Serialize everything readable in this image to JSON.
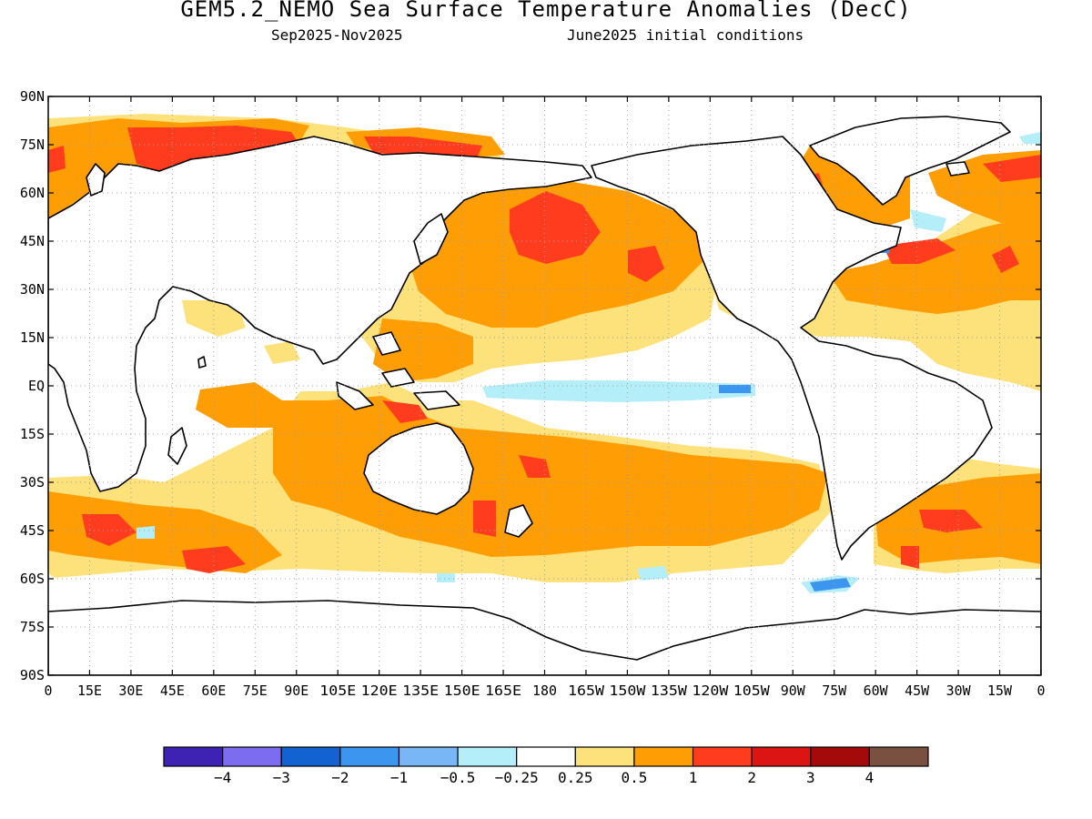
{
  "title": "GEM5.2_NEMO Sea Surface Temperature Anomalies (DecC)",
  "subtitle_left": "Sep2025-Nov2025",
  "subtitle_right": "June2025 initial conditions",
  "lat_labels": [
    "90N",
    "75N",
    "60N",
    "45N",
    "30N",
    "15N",
    "EQ",
    "15S",
    "30S",
    "45S",
    "60S",
    "75S",
    "90S"
  ],
  "lon_labels": [
    "0",
    "15E",
    "30E",
    "45E",
    "60E",
    "75E",
    "90E",
    "105E",
    "120E",
    "135E",
    "150E",
    "165E",
    "180",
    "165W",
    "150W",
    "135W",
    "120W",
    "105W",
    "90W",
    "75W",
    "60W",
    "45W",
    "30W",
    "15W",
    "0"
  ],
  "legend": {
    "colors": [
      "#3d22b4",
      "#7b6cf0",
      "#1262d2",
      "#3c96f0",
      "#78b6f5",
      "#b4eef8",
      "#ffffff",
      "#fde17a",
      "#ff9e04",
      "#ff3c1e",
      "#dc1414",
      "#a50a0a",
      "#7a5040"
    ],
    "labels": [
      "-4",
      "-3",
      "-2",
      "-1",
      "-0.5",
      "-0.25",
      "0.25",
      "0.5",
      "1",
      "2",
      "3",
      "4"
    ]
  },
  "colors": {
    "land": "#ffffff",
    "coast": "#000000",
    "grid": "#a0a0a0"
  }
}
